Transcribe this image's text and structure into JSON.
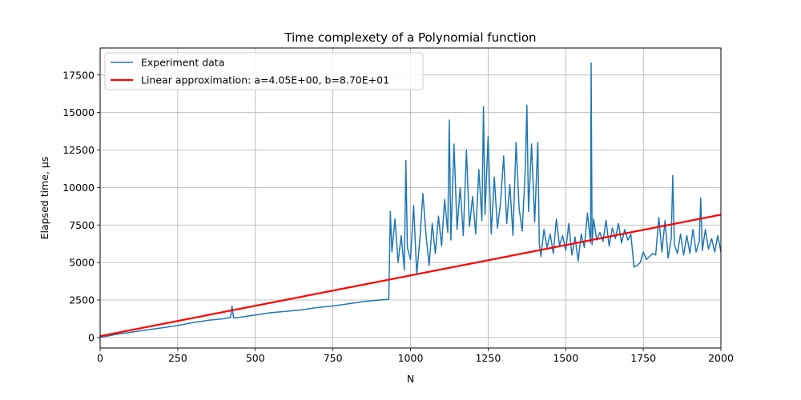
{
  "chart_data": {
    "type": "line",
    "title": "Time complexety of a Polynomial function",
    "xlabel": "N",
    "ylabel": "Elapsed time, μs",
    "xlim": [
      0,
      2000
    ],
    "ylim": [
      -700,
      19300
    ],
    "x_ticks": [
      0,
      250,
      500,
      750,
      1000,
      1250,
      1500,
      1750,
      2000
    ],
    "y_ticks": [
      0,
      2500,
      5000,
      7500,
      10000,
      12500,
      15000,
      17500
    ],
    "grid": true,
    "legend_position": "top-left",
    "series": [
      {
        "name": "Experiment data",
        "color": "#1f77b4",
        "x": [
          0,
          50,
          100,
          150,
          200,
          250,
          300,
          350,
          400,
          420,
          425,
          430,
          450,
          500,
          550,
          600,
          650,
          700,
          750,
          800,
          850,
          900,
          930,
          935,
          940,
          950,
          960,
          970,
          980,
          985,
          990,
          1000,
          1010,
          1020,
          1030,
          1040,
          1050,
          1060,
          1070,
          1080,
          1090,
          1100,
          1110,
          1120,
          1125,
          1130,
          1140,
          1150,
          1160,
          1170,
          1180,
          1190,
          1200,
          1210,
          1220,
          1230,
          1235,
          1240,
          1250,
          1260,
          1270,
          1280,
          1290,
          1300,
          1310,
          1320,
          1330,
          1340,
          1350,
          1360,
          1370,
          1375,
          1380,
          1390,
          1400,
          1410,
          1415,
          1420,
          1430,
          1440,
          1450,
          1460,
          1470,
          1480,
          1490,
          1500,
          1510,
          1520,
          1530,
          1540,
          1550,
          1560,
          1570,
          1580,
          1582,
          1585,
          1590,
          1600,
          1610,
          1620,
          1630,
          1640,
          1650,
          1660,
          1670,
          1680,
          1690,
          1700,
          1710,
          1720,
          1730,
          1740,
          1750,
          1760,
          1770,
          1780,
          1790,
          1800,
          1810,
          1820,
          1830,
          1840,
          1845,
          1850,
          1860,
          1870,
          1880,
          1890,
          1900,
          1910,
          1920,
          1930,
          1935,
          1940,
          1950,
          1960,
          1970,
          1980,
          1990,
          2000
        ],
        "y": [
          0,
          200,
          350,
          500,
          650,
          800,
          1000,
          1150,
          1250,
          1350,
          2100,
          1300,
          1350,
          1500,
          1650,
          1750,
          1850,
          2000,
          2100,
          2250,
          2400,
          2500,
          2550,
          8400,
          5700,
          7900,
          5000,
          6800,
          4500,
          11800,
          6000,
          5200,
          8800,
          4200,
          6500,
          9600,
          6800,
          4800,
          7600,
          5600,
          8100,
          6100,
          9200,
          7000,
          14500,
          6500,
          12900,
          7200,
          10000,
          6800,
          12500,
          7400,
          9400,
          6900,
          11200,
          7800,
          15400,
          8200,
          13400,
          6900,
          10700,
          7300,
          9000,
          12100,
          7600,
          10200,
          6800,
          13000,
          8600,
          7100,
          11400,
          15500,
          8400,
          12900,
          7700,
          13000,
          6300,
          5400,
          7200,
          6000,
          6900,
          5600,
          7900,
          6100,
          6800,
          5800,
          7600,
          5500,
          6700,
          5100,
          6900,
          6000,
          8300,
          6300,
          18300,
          6200,
          7900,
          6500,
          7000,
          6400,
          7800,
          6100,
          7300,
          6600,
          7600,
          6300,
          7200,
          6500,
          6900,
          4700,
          4800,
          5000,
          5700,
          5200,
          5400,
          5600,
          5500,
          8000,
          5700,
          7800,
          5300,
          6600,
          10800,
          6200,
          5600,
          6900,
          5500,
          6800,
          5600,
          7200,
          5700,
          6400,
          9300,
          5800,
          7200,
          5900,
          6600,
          5700,
          6800,
          5700
        ]
      },
      {
        "name": "Linear approximation: a=4.05E+00, b=8.70E+01",
        "color": "#ff0000",
        "x": [
          0,
          2000
        ],
        "y": [
          87,
          8187
        ]
      }
    ]
  }
}
